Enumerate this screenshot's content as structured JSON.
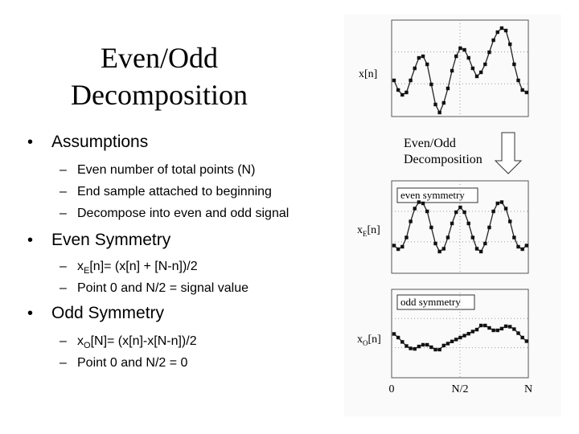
{
  "title": [
    "Even/Odd",
    "Decomposition"
  ],
  "bullets": [
    {
      "text": "Assumptions",
      "subs": [
        {
          "parts": [
            "Even number of total points (N)"
          ]
        },
        {
          "parts": [
            "End sample attached to beginning"
          ]
        },
        {
          "parts": [
            "Decompose into even and odd signal"
          ]
        }
      ]
    },
    {
      "text": "Even Symmetry",
      "subs": [
        {
          "parts": [
            "x",
            "E",
            "[n]= (x[n] + [N-n])/2"
          ]
        },
        {
          "parts": [
            "Point 0 and N/2 = signal value"
          ]
        }
      ]
    },
    {
      "text": "Odd Symmetry",
      "subs": [
        {
          "parts": [
            "x",
            "O",
            "[N]= (x[n]-x[N-n])/2"
          ]
        },
        {
          "parts": [
            "Point 0 and N/2 = 0"
          ]
        }
      ]
    }
  ],
  "figure": {
    "signal_label": "x[n]",
    "step_label": [
      "Even/Odd",
      "Decomposition"
    ],
    "even_box": "even symmetry",
    "even_label": [
      "x",
      "E",
      "[n]"
    ],
    "odd_box": "odd symmetry",
    "odd_label": [
      "x",
      "O",
      "[n]"
    ],
    "axis_labels": [
      "0",
      "N/2",
      "N"
    ]
  }
}
